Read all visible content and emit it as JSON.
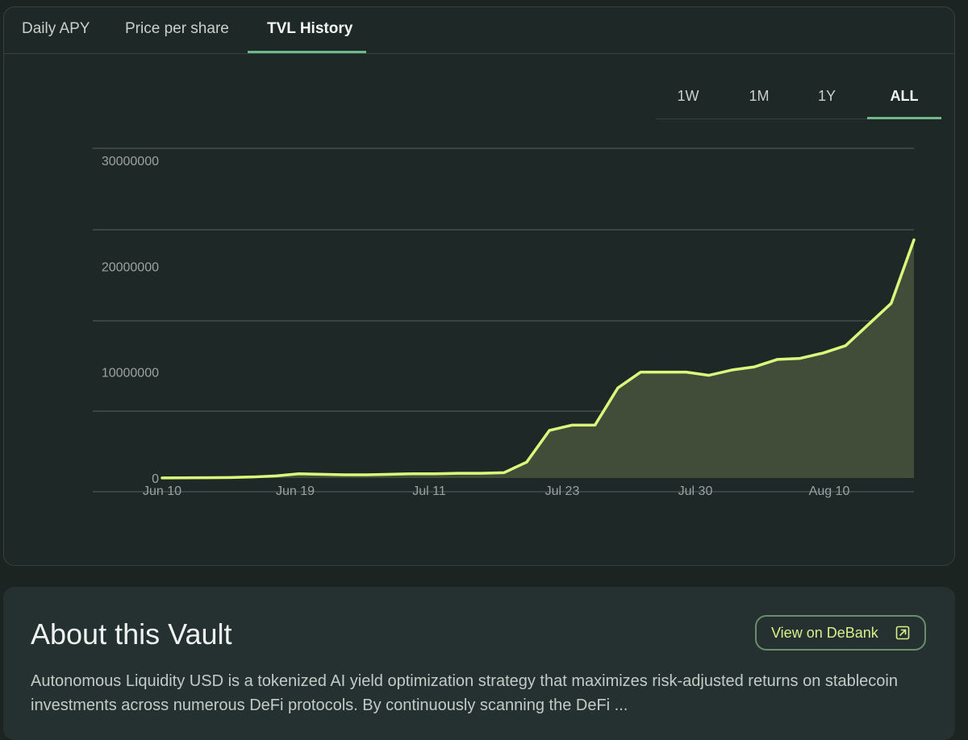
{
  "tabs": [
    {
      "label": "Daily APY"
    },
    {
      "label": "Price per share"
    },
    {
      "label": "TVL History",
      "active": true
    }
  ],
  "ranges": [
    {
      "label": "1W"
    },
    {
      "label": "1M"
    },
    {
      "label": "1Y"
    },
    {
      "label": "ALL",
      "active": true
    }
  ],
  "chart_data": {
    "type": "area",
    "x_ticks": [
      "Jun 10",
      "Jun 19",
      "Jul 11",
      "Jul 23",
      "Jul 30",
      "Aug 10"
    ],
    "y_ticks": [
      0,
      10000000,
      20000000,
      30000000
    ],
    "ylim": [
      0,
      30000000
    ],
    "grid": "horizontal",
    "legend": "none",
    "line_color": "#d9fa7a",
    "fill_color": "#414d39",
    "x": [
      0,
      3,
      6,
      9,
      12,
      15,
      18,
      21,
      24,
      27,
      30,
      33,
      36,
      39,
      42,
      45,
      48,
      51,
      54,
      57,
      60,
      63,
      66,
      69,
      72,
      75,
      78,
      81,
      84,
      87,
      90,
      93,
      96,
      99
    ],
    "values": [
      10000,
      20000,
      30000,
      50000,
      100000,
      200000,
      400000,
      350000,
      300000,
      300000,
      350000,
      400000,
      400000,
      450000,
      450000,
      500000,
      1500000,
      4500000,
      5000000,
      5000000,
      8500000,
      10000000,
      10000000,
      10000000,
      9700000,
      10200000,
      10500000,
      11200000,
      11300000,
      11800000,
      12500000,
      14500000,
      16500000,
      22500000
    ]
  },
  "about": {
    "title": "About this Vault",
    "button_label": "View on DeBank",
    "icon": "external-link-icon",
    "description": "Autonomous Liquidity USD is a tokenized AI yield optimization strategy that maximizes risk-adjusted returns on stablecoin investments across numerous DeFi protocols. By continuously scanning the DeFi ..."
  }
}
